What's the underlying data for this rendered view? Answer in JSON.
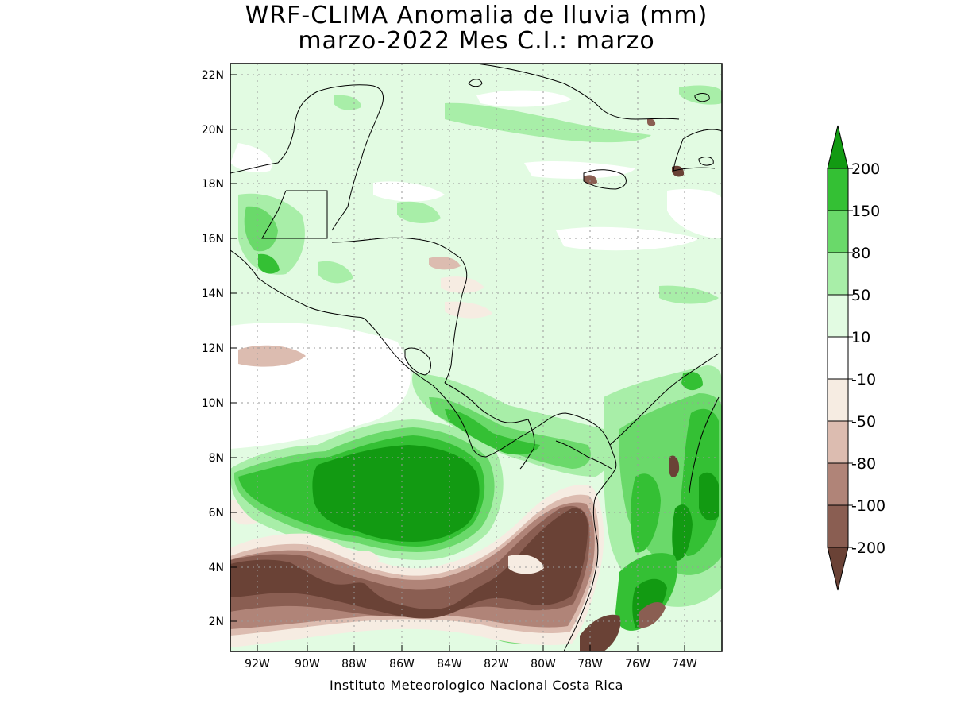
{
  "title": {
    "line1": "WRF-CLIMA Anomalia de lluvia (mm)",
    "line2": "marzo-2022 Mes C.I.: marzo"
  },
  "footer": "Instituto Meteorologico Nacional Costa Rica",
  "axes": {
    "lon_ticks": [
      "92W",
      "90W",
      "88W",
      "86W",
      "84W",
      "82W",
      "80W",
      "78W",
      "76W",
      "74W"
    ],
    "lat_ticks": [
      "22N",
      "20N",
      "18N",
      "16N",
      "14N",
      "12N",
      "10N",
      "8N",
      "6N",
      "4N",
      "2N"
    ],
    "lon_range": [
      -93.1,
      -72.4
    ],
    "lat_range": [
      1.0,
      22.4
    ]
  },
  "colorbar": {
    "labels": [
      "200",
      "150",
      "80",
      "50",
      "10",
      "-10",
      "-50",
      "-80",
      "-100",
      "-200"
    ],
    "colors": [
      "#129a12",
      "#34c034",
      "#6ad96a",
      "#a8eea8",
      "#e2fbe2",
      "#ffffff",
      "#f6ece2",
      "#dcbcb0",
      "#b08478",
      "#8a5e52",
      "#6a4236"
    ]
  },
  "map": {
    "land_lines": "coastlines and borders of Central America, Mexico, Cuba, Jamaica, Hispaniola, Colombia",
    "background_color": "#e2fbe2"
  }
}
